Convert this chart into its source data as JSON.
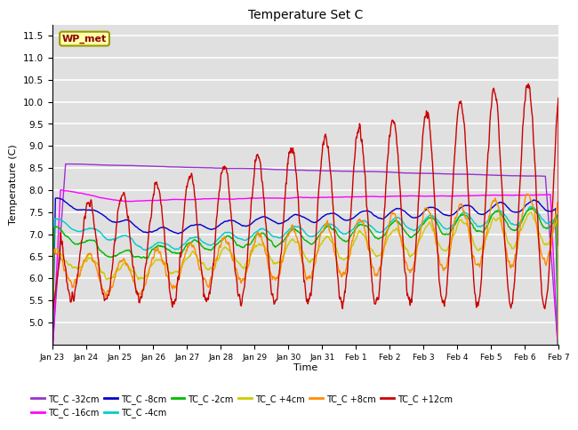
{
  "title": "Temperature Set C",
  "xlabel": "Time",
  "ylabel": "Temperature (C)",
  "ylim": [
    4.5,
    11.75
  ],
  "yticks": [
    5.0,
    5.5,
    6.0,
    6.5,
    7.0,
    7.5,
    8.0,
    8.5,
    9.0,
    9.5,
    10.0,
    10.5,
    11.0,
    11.5
  ],
  "series_colors": {
    "TC_C -32cm": "#9932CC",
    "TC_C -16cm": "#FF00FF",
    "TC_C -8cm": "#0000CD",
    "TC_C -4cm": "#00CCCC",
    "TC_C -2cm": "#00BB00",
    "TC_C +4cm": "#CCCC00",
    "TC_C +8cm": "#FF8C00",
    "TC_C +12cm": "#CC0000"
  },
  "wp_met_label": "WP_met",
  "wp_met_bg": "#FFFFAA",
  "wp_met_fg": "#8B0000",
  "tick_labels": [
    "Jan 23",
    "Jan 24",
    "Jan 25",
    "Jan 26",
    "Jan 27",
    "Jan 28",
    "Jan 29",
    "Jan 30",
    "Jan 31",
    "Feb 1",
    "Feb 2",
    "Feb 3",
    "Feb 4",
    "Feb 5",
    "Feb 6",
    "Feb 7"
  ],
  "plot_bg": "#E0E0E0"
}
